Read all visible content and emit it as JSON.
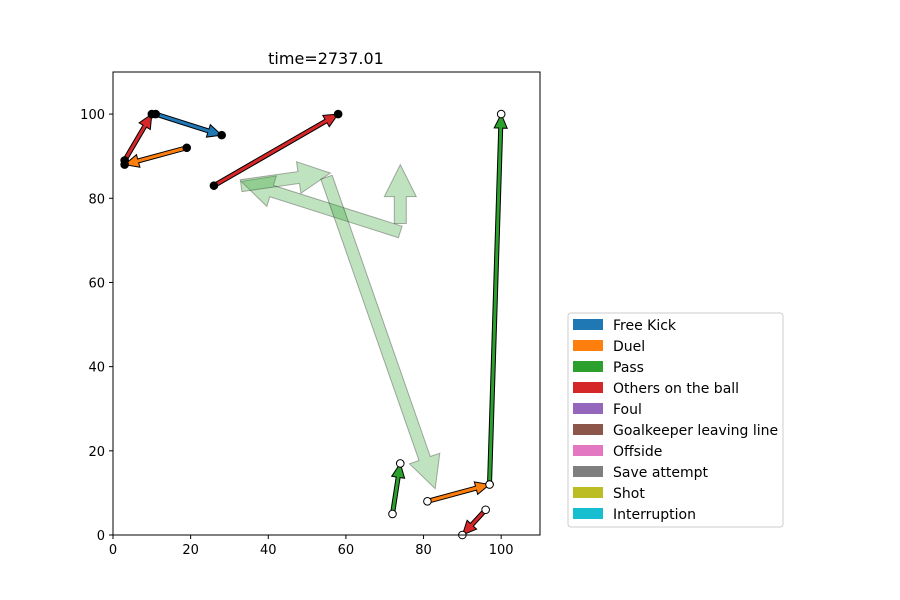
{
  "chart_data": {
    "type": "arrows",
    "title": "time=2737.01",
    "xlim": [
      0,
      110
    ],
    "ylim": [
      0,
      110
    ],
    "xticks": [
      0,
      20,
      40,
      60,
      80,
      100
    ],
    "yticks": [
      0,
      20,
      40,
      60,
      80,
      100
    ],
    "grid": false,
    "legend_position": "lower-right outside",
    "legend": [
      {
        "label": "Free Kick",
        "color": "#1f77b4"
      },
      {
        "label": "Duel",
        "color": "#ff7f0e"
      },
      {
        "label": "Pass",
        "color": "#2ca02c"
      },
      {
        "label": "Others on the ball",
        "color": "#d62728"
      },
      {
        "label": "Foul",
        "color": "#9467bd"
      },
      {
        "label": "Goalkeeper leaving line",
        "color": "#8c564b"
      },
      {
        "label": "Offside",
        "color": "#e377c2"
      },
      {
        "label": "Save attempt",
        "color": "#7f7f7f"
      },
      {
        "label": "Shot",
        "color": "#bcbd22"
      },
      {
        "label": "Interruption",
        "color": "#17becf"
      }
    ],
    "faded_arrows": [
      {
        "event": "Pass",
        "x0": 74,
        "y0": 72,
        "x1": 33,
        "y1": 84
      },
      {
        "event": "Pass",
        "x0": 33,
        "y0": 83,
        "x1": 56,
        "y1": 86
      },
      {
        "event": "Pass",
        "x0": 55,
        "y0": 85,
        "x1": 83,
        "y1": 11
      },
      {
        "event": "Pass",
        "x0": 74,
        "y0": 74,
        "x1": 74,
        "y1": 88
      }
    ],
    "team_dark": [
      {
        "event": "Free Kick",
        "x0": 11,
        "y0": 100,
        "x1": 28,
        "y1": 95
      },
      {
        "event": "Others on the ball",
        "x0": 3,
        "y0": 89,
        "x1": 10,
        "y1": 100
      },
      {
        "event": "Duel",
        "x0": 19,
        "y0": 92,
        "x1": 3,
        "y1": 88
      },
      {
        "event": "Others on the ball",
        "x0": 26,
        "y0": 83,
        "x1": 58,
        "y1": 100
      }
    ],
    "team_light": [
      {
        "event": "Pass",
        "x0": 72,
        "y0": 5,
        "x1": 74,
        "y1": 17
      },
      {
        "event": "Duel",
        "x0": 81,
        "y0": 8,
        "x1": 97,
        "y1": 12
      },
      {
        "event": "Pass",
        "x0": 97,
        "y0": 12,
        "x1": 100,
        "y1": 100
      },
      {
        "event": "Others on the ball",
        "x0": 96,
        "y0": 6,
        "x1": 90,
        "y1": 0
      }
    ]
  }
}
